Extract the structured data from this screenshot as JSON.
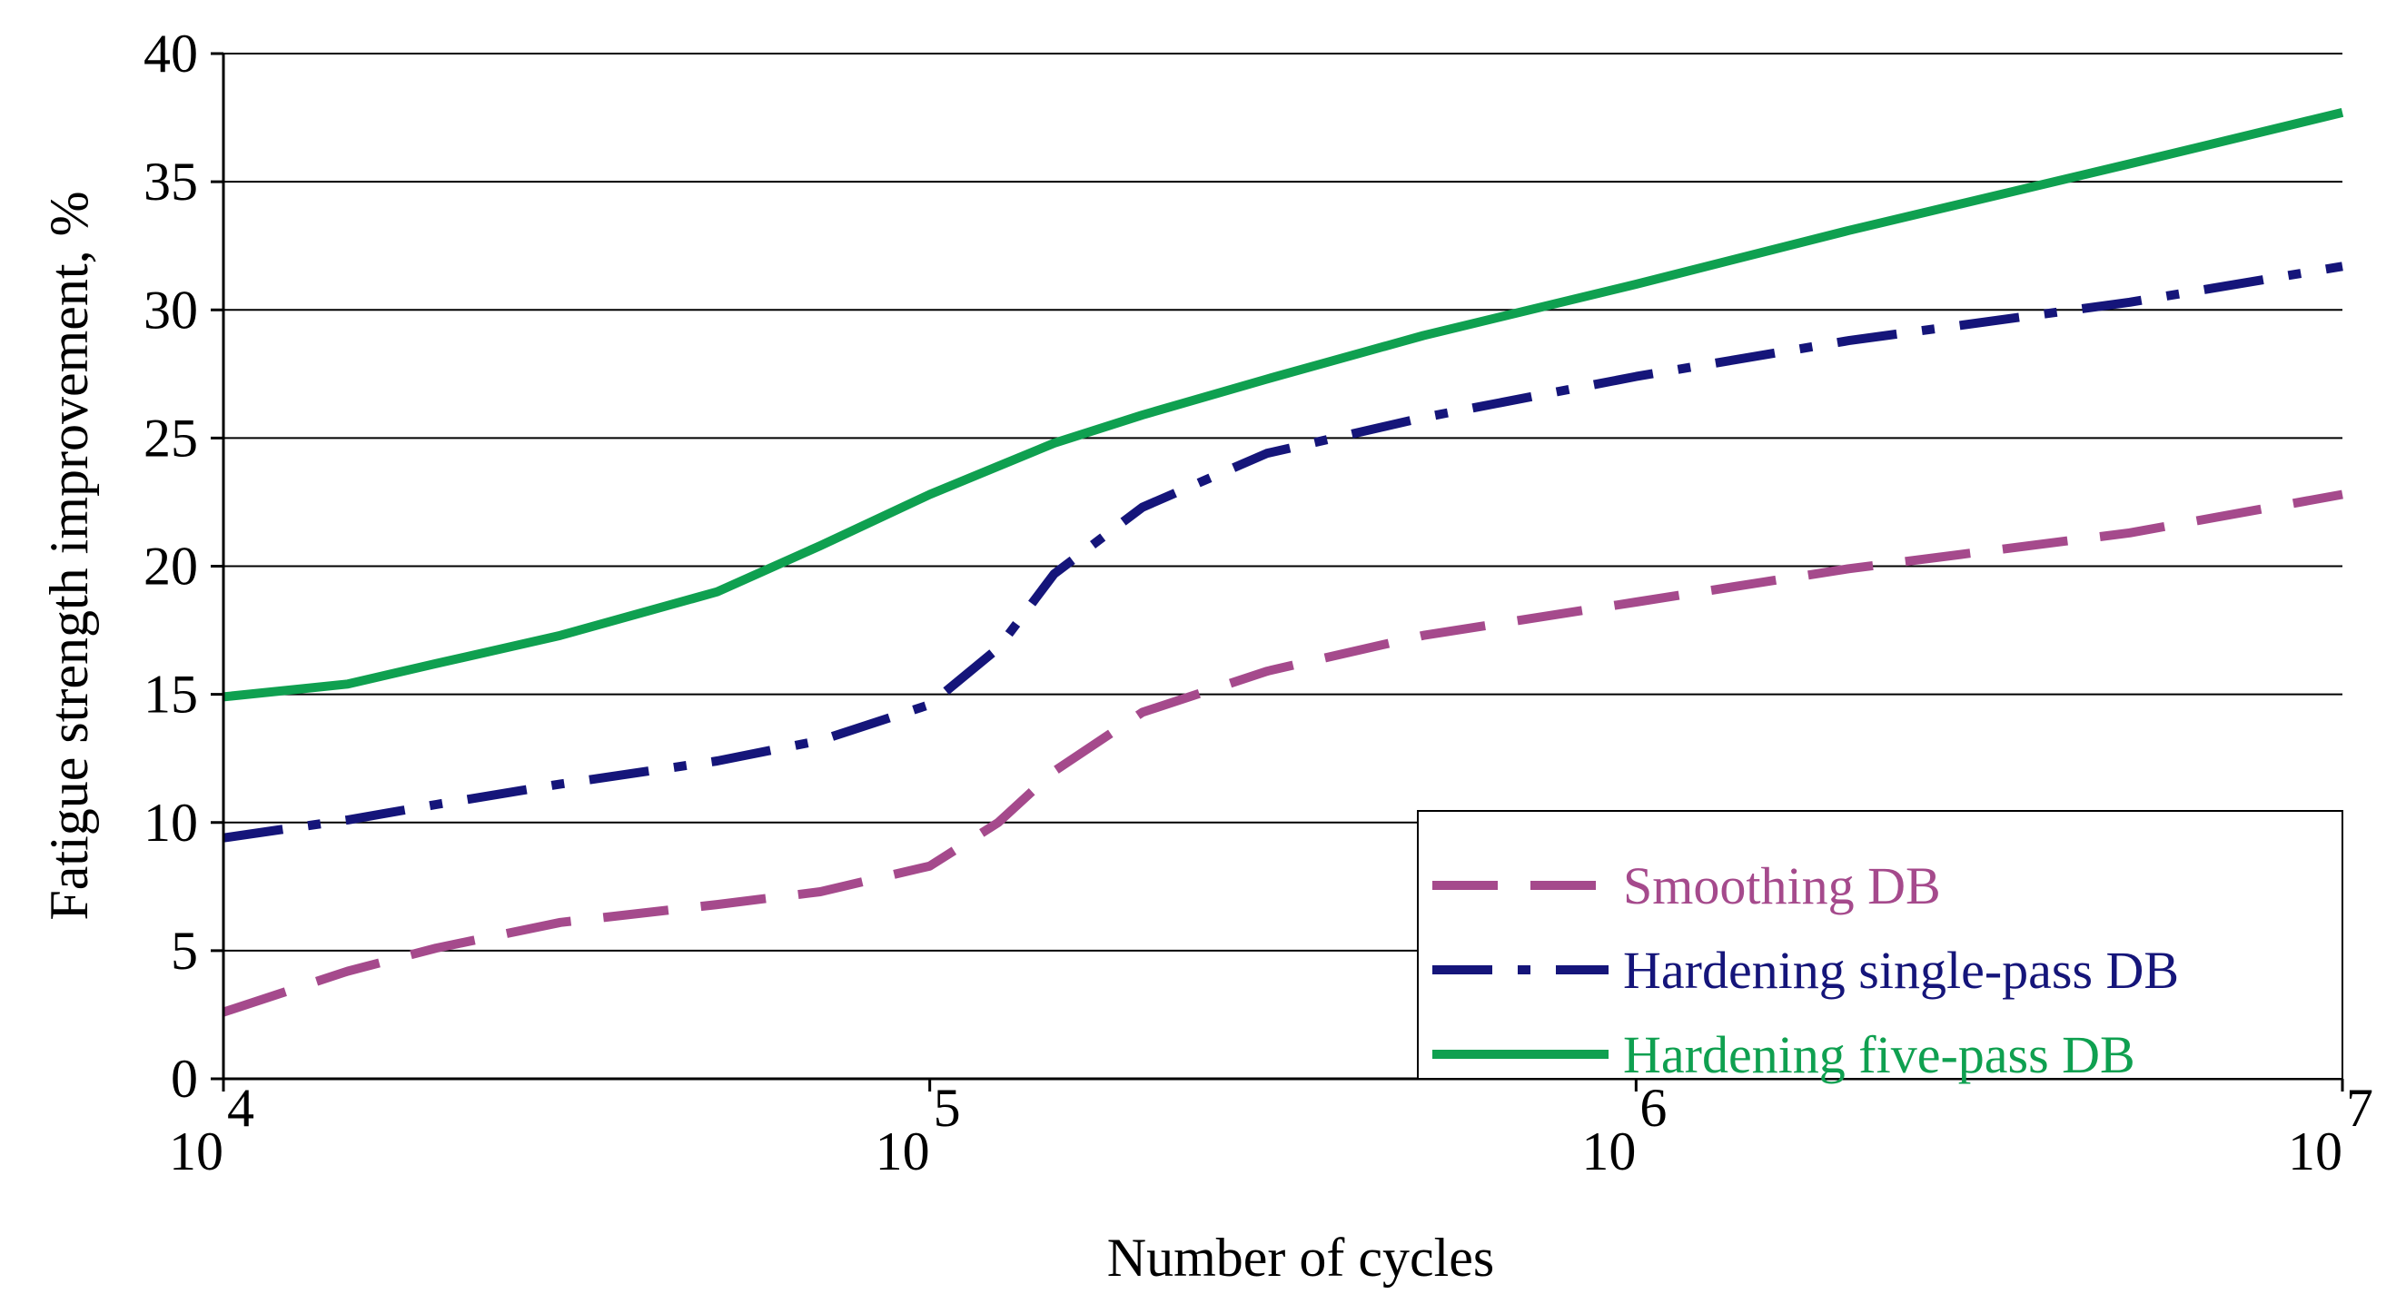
{
  "chart_data": {
    "type": "line",
    "x_scale": "log10",
    "xlim": [
      10000,
      10000000
    ],
    "ylim": [
      0,
      40
    ],
    "xlabel": "Number of cycles",
    "ylabel": "Fatigue strength improvement, %",
    "grid": "horizontal",
    "legend_position": "bottom-right",
    "y_ticks": [
      {
        "value": 0,
        "label": "0"
      },
      {
        "value": 5,
        "label": "5"
      },
      {
        "value": 10,
        "label": "10"
      },
      {
        "value": 15,
        "label": "15"
      },
      {
        "value": 20,
        "label": "20"
      },
      {
        "value": 25,
        "label": "25"
      },
      {
        "value": 30,
        "label": "30"
      },
      {
        "value": 35,
        "label": "35"
      },
      {
        "value": 40,
        "label": "40"
      }
    ],
    "x_ticks": [
      {
        "value": 10000,
        "base": "10",
        "exp": "4"
      },
      {
        "value": 100000,
        "base": "10",
        "exp": "5"
      },
      {
        "value": 1000000,
        "base": "10",
        "exp": "6"
      },
      {
        "value": 10000000,
        "base": "10",
        "exp": "7"
      }
    ],
    "series": [
      {
        "name": "Smoothing DB",
        "color": "#A54A8C",
        "style": "long-dash",
        "points": [
          [
            10000,
            2.6
          ],
          [
            15000,
            4.2
          ],
          [
            20000,
            5.1
          ],
          [
            30000,
            6.1
          ],
          [
            50000,
            6.8
          ],
          [
            70000,
            7.3
          ],
          [
            100000,
            8.3
          ],
          [
            125000,
            10.0
          ],
          [
            150000,
            12.0
          ],
          [
            200000,
            14.3
          ],
          [
            300000,
            15.9
          ],
          [
            500000,
            17.3
          ],
          [
            1000000,
            18.6
          ],
          [
            2000000,
            19.9
          ],
          [
            5000000,
            21.3
          ],
          [
            10000000,
            22.8
          ]
        ]
      },
      {
        "name": "Hardening single-pass DB",
        "color": "#15157A",
        "style": "dash-dot",
        "points": [
          [
            10000,
            9.4
          ],
          [
            15000,
            10.1
          ],
          [
            20000,
            10.7
          ],
          [
            30000,
            11.5
          ],
          [
            50000,
            12.4
          ],
          [
            70000,
            13.2
          ],
          [
            100000,
            14.6
          ],
          [
            125000,
            16.8
          ],
          [
            150000,
            19.7
          ],
          [
            200000,
            22.3
          ],
          [
            300000,
            24.4
          ],
          [
            500000,
            25.8
          ],
          [
            1000000,
            27.4
          ],
          [
            2000000,
            28.8
          ],
          [
            5000000,
            30.3
          ],
          [
            10000000,
            31.7
          ]
        ]
      },
      {
        "name": "Hardening five-pass DB",
        "color": "#0FA050",
        "style": "solid",
        "points": [
          [
            10000,
            14.9
          ],
          [
            15000,
            15.4
          ],
          [
            20000,
            16.2
          ],
          [
            30000,
            17.3
          ],
          [
            50000,
            19.0
          ],
          [
            70000,
            20.8
          ],
          [
            100000,
            22.8
          ],
          [
            150000,
            24.8
          ],
          [
            200000,
            25.9
          ],
          [
            300000,
            27.3
          ],
          [
            500000,
            29.0
          ],
          [
            1000000,
            31.0
          ],
          [
            2000000,
            33.1
          ],
          [
            5000000,
            35.7
          ],
          [
            10000000,
            37.7
          ]
        ]
      }
    ]
  }
}
